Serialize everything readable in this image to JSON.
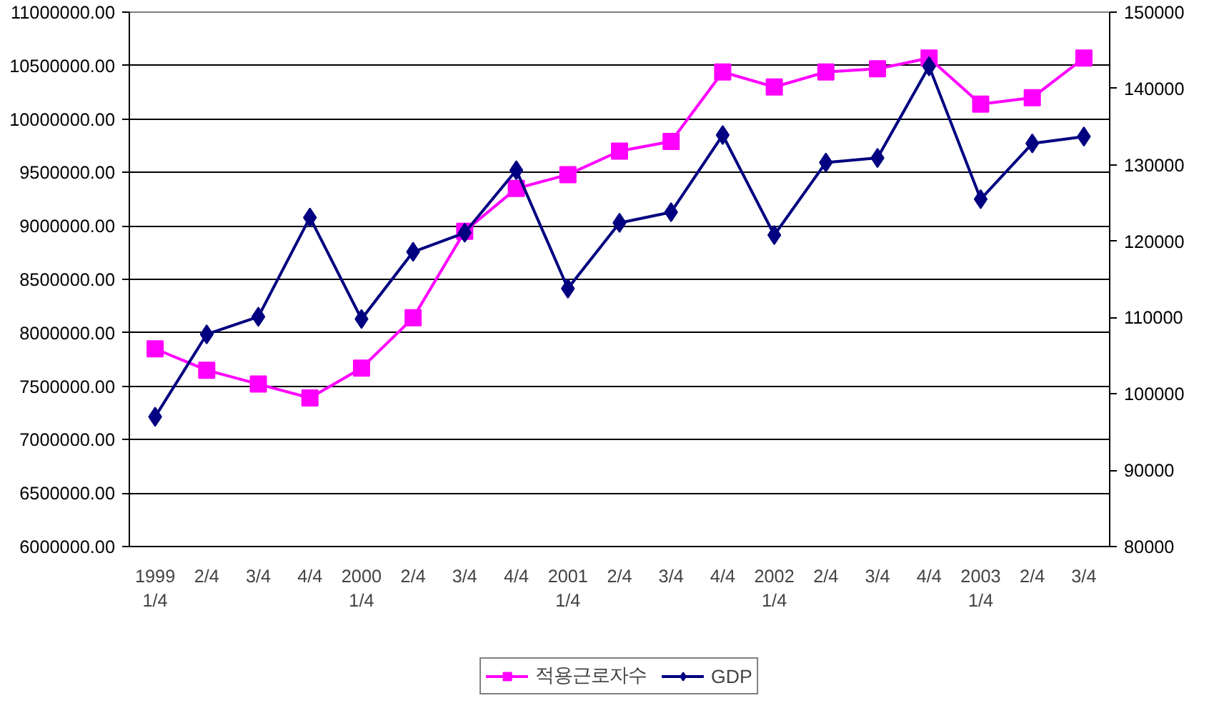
{
  "chart_data": {
    "type": "line",
    "categories": [
      "1999\n1/4",
      "2/4",
      "3/4",
      "4/4",
      "2000\n1/4",
      "2/4",
      "3/4",
      "4/4",
      "2001\n1/4",
      "2/4",
      "3/4",
      "4/4",
      "2002\n1/4",
      "2/4",
      "3/4",
      "4/4",
      "2003\n1/4",
      "2/4",
      "3/4"
    ],
    "series": [
      {
        "name": "적용근로자수",
        "color": "#ff00ff",
        "marker": "square",
        "values": [
          7850000,
          7650000,
          7520000,
          7390000,
          7670000,
          8140000,
          8950000,
          9350000,
          9480000,
          9700000,
          9790000,
          10440000,
          10300000,
          10440000,
          10470000,
          10570000,
          10140000,
          10200000,
          10570000
        ]
      },
      {
        "name": "GDP",
        "color": "#000080",
        "marker": "diamond",
        "axis": "y2",
        "values": [
          97000,
          107800,
          110100,
          123100,
          109800,
          118600,
          121100,
          129300,
          113800,
          122400,
          123800,
          133900,
          120800,
          130300,
          130900,
          142900,
          125500,
          132800,
          133700
        ]
      }
    ],
    "ylim": [
      6000000,
      11000000
    ],
    "yticks": [
      {
        "value": 6000000,
        "label": "6000000.00"
      },
      {
        "value": 6500000,
        "label": "6500000.00"
      },
      {
        "value": 7000000,
        "label": "7000000.00"
      },
      {
        "value": 7500000,
        "label": "7500000.00"
      },
      {
        "value": 8000000,
        "label": "8000000.00"
      },
      {
        "value": 8500000,
        "label": "8500000.00"
      },
      {
        "value": 9000000,
        "label": "9000000.00"
      },
      {
        "value": 9500000,
        "label": "9500000.00"
      },
      {
        "value": 10000000,
        "label": "10000000.00"
      },
      {
        "value": 10500000,
        "label": "10500000.00"
      },
      {
        "value": 11000000,
        "label": "11000000.00"
      }
    ],
    "y2lim": [
      80000,
      150000
    ],
    "y2ticks": [
      80000,
      90000,
      100000,
      110000,
      120000,
      130000,
      140000,
      150000
    ],
    "grid": "y",
    "legend": "bottom",
    "line_style": "solid"
  }
}
